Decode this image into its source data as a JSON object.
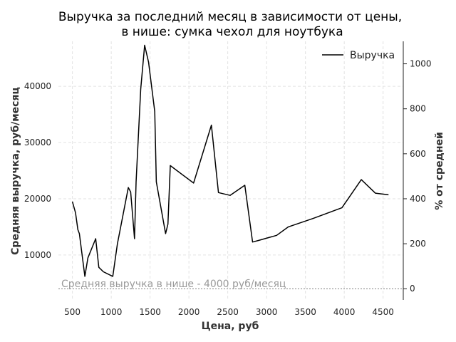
{
  "chart_data": {
    "type": "line",
    "title_line1": "Выручка за последний месяц в зависимости от цены,",
    "title_line2": "в нише: сумка чехол для ноутбука",
    "xlabel": "Цена, руб",
    "ylabel": "Средняя выручка, руб/месяц",
    "y2label": "% от средней",
    "xlim": [
      320,
      4760
    ],
    "ylim": [
      2000,
      48000
    ],
    "y2lim": [
      -50,
      1100
    ],
    "x_ticks": [
      500,
      1000,
      1500,
      2000,
      2500,
      3000,
      3500,
      4000,
      4500
    ],
    "y_ticks": [
      10000,
      20000,
      30000,
      40000
    ],
    "y2_ticks": [
      0,
      200,
      400,
      600,
      800,
      1000
    ],
    "grid": true,
    "legend_position": "top-right",
    "series": [
      {
        "name": "Выручка",
        "color": "#000000",
        "x": [
          500,
          540,
          570,
          590,
          660,
          700,
          800,
          840,
          900,
          1020,
          1080,
          1220,
          1250,
          1300,
          1320,
          1380,
          1430,
          1480,
          1560,
          1580,
          1700,
          1730,
          1760,
          2060,
          2290,
          2380,
          2530,
          2720,
          2820,
          2900,
          3130,
          3280,
          3600,
          3970,
          4220,
          4400,
          4570
        ],
        "values": [
          19500,
          17500,
          14500,
          13800,
          6200,
          9500,
          12900,
          7800,
          7000,
          6200,
          12000,
          22000,
          21200,
          12900,
          23000,
          39500,
          47300,
          44300,
          35500,
          23000,
          13800,
          15500,
          25900,
          22800,
          33100,
          21100,
          20600,
          22400,
          12300,
          12600,
          13500,
          15000,
          16500,
          18400,
          23400,
          21000,
          20700
        ]
      }
    ],
    "reference_line": {
      "y": 4000,
      "label": "Средняя выручка в нише - 4000 руб/месяц",
      "color": "#aaaaaa"
    }
  }
}
